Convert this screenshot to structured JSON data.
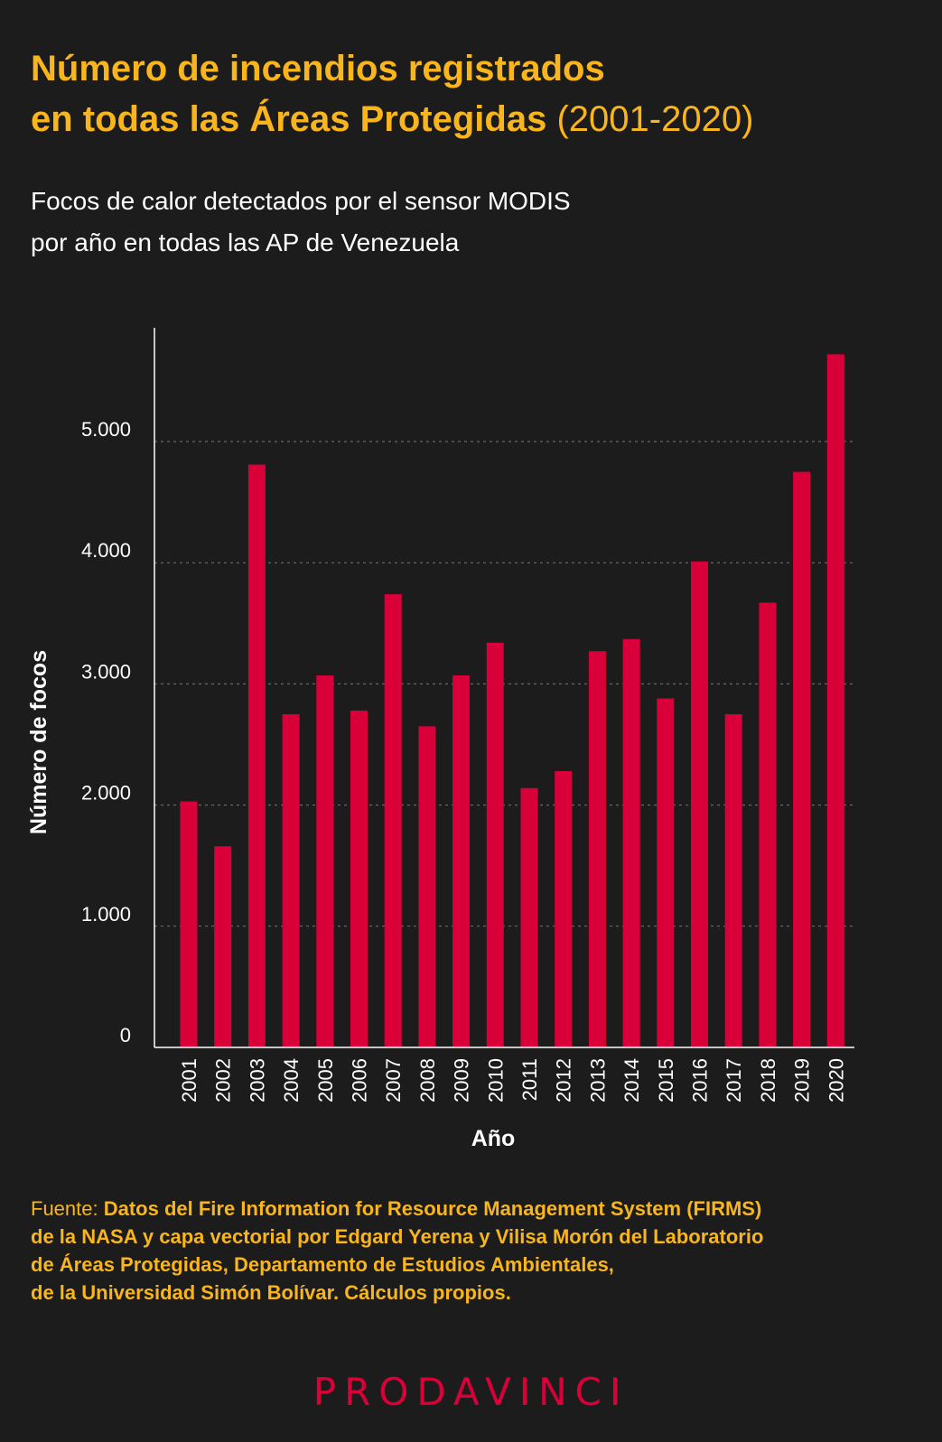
{
  "header": {
    "title_line1": "Número de incendios registrados",
    "title_line2": "en todas las Áreas Protegidas",
    "title_years": "(2001-2020)",
    "subtitle_line1": "Focos de calor detectados por el sensor MODIS",
    "subtitle_line2": "por año en todas las AP de Venezuela"
  },
  "source": {
    "label": "Fuente:",
    "line1": "Datos del Fire Information for Resource Management System (FIRMS)",
    "line2": "de la NASA y capa vectorial por Edgard Yerena y Vilisa Morón del Laboratorio",
    "line3": "de Áreas Protegidas, Departamento de Estudios Ambientales,",
    "line4": "de la Universidad Simón Bolívar. Cálculos propios."
  },
  "logo": "PRODAVINCI",
  "colors": {
    "background": "#1c1c1c",
    "bar": "#d9003a",
    "title": "#f9b51c",
    "text": "#ffffff",
    "grid": "#777777"
  },
  "chart_data": {
    "type": "bar",
    "xlabel": "Año",
    "ylabel": "Número de focos",
    "ylim": [
      0,
      5900
    ],
    "grid": true,
    "y_ticks": [
      0,
      1000,
      2000,
      3000,
      4000,
      5000
    ],
    "y_tick_labels": [
      "0",
      "1.000",
      "2.000",
      "3.000",
      "4.000",
      "5.000"
    ],
    "categories": [
      "2001",
      "2002",
      "2003",
      "2004",
      "2005",
      "2006",
      "2007",
      "2008",
      "2009",
      "2010",
      "2011",
      "2012",
      "2013",
      "2014",
      "2015",
      "2016",
      "2017",
      "2018",
      "2019",
      "2020"
    ],
    "values": [
      2030,
      1660,
      4810,
      2750,
      3070,
      2780,
      3740,
      2650,
      3070,
      3340,
      2140,
      2280,
      3270,
      3370,
      2880,
      4010,
      2750,
      3670,
      4750,
      5720
    ]
  }
}
